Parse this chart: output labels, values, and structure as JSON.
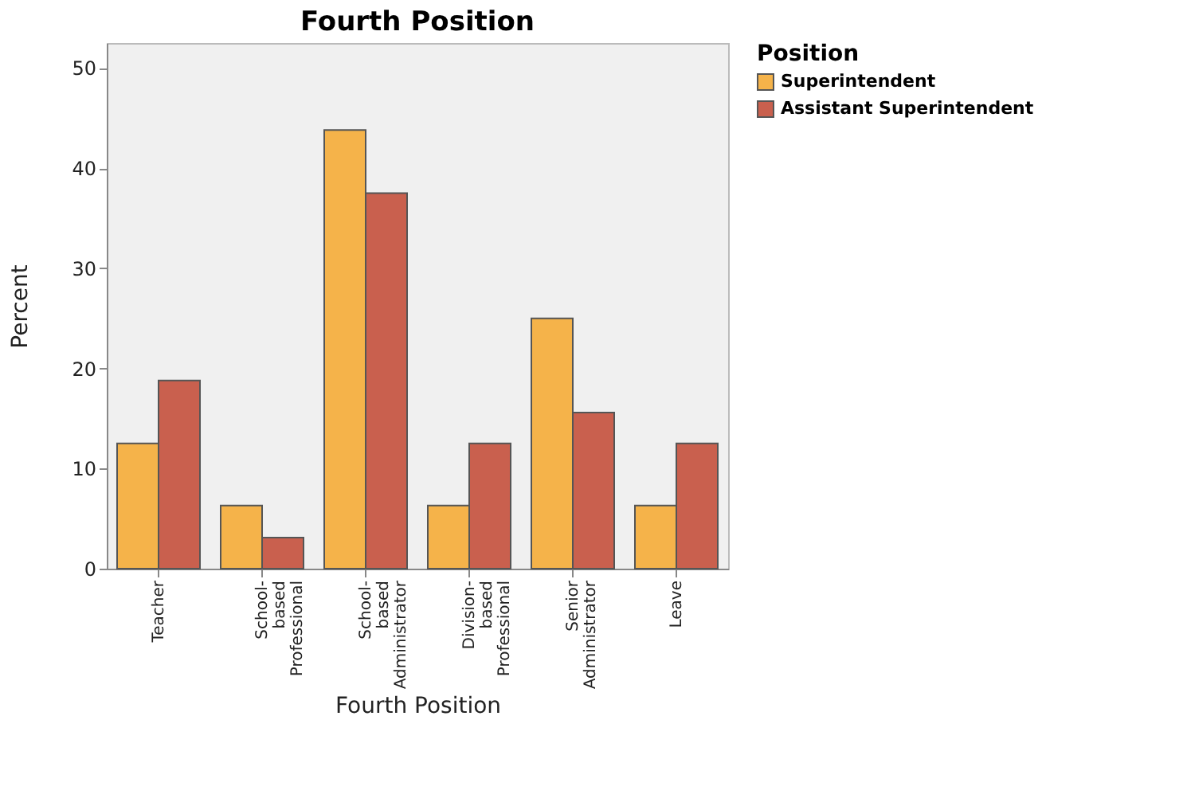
{
  "chart_data": {
    "type": "bar",
    "title": "Fourth Position",
    "xlabel": "Fourth Position",
    "ylabel": "Percent",
    "legend_title": "Position",
    "categories": [
      "Teacher",
      "School-\nbased\nProfessional",
      "School-\nbased\nAdministrator",
      "Division-\nbased\nProfessional",
      "Senior\nAdministrator",
      "Leave"
    ],
    "series": [
      {
        "name": "Superintendent",
        "color": "#f5b34a",
        "values": [
          12.5,
          6.3,
          43.8,
          6.3,
          25,
          6.3
        ]
      },
      {
        "name": "Assistant Superintendent",
        "color": "#c9604e",
        "values": [
          18.8,
          3.1,
          37.5,
          12.5,
          15.6,
          12.5
        ]
      }
    ],
    "ylim": [
      0,
      52.5
    ],
    "yticks": [
      0,
      10,
      20,
      30,
      40,
      50
    ],
    "grid": false,
    "legend": "top right"
  }
}
